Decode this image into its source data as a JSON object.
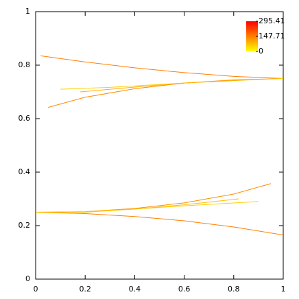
{
  "chart_data": {
    "type": "line",
    "xlim": [
      0,
      1
    ],
    "ylim": [
      0,
      1
    ],
    "xticks": [
      0,
      0.2,
      0.4,
      0.6,
      0.8,
      1
    ],
    "yticks": [
      0,
      0.2,
      0.4,
      0.6,
      0.8,
      1
    ],
    "series": [
      {
        "color": "#ff7f00",
        "x": [
          0.02,
          0.2,
          0.4,
          0.6,
          0.8,
          1.0
        ],
        "values": [
          0.835,
          0.812,
          0.79,
          0.772,
          0.758,
          0.75
        ]
      },
      {
        "color": "#ff8c00",
        "x": [
          0.05,
          0.2,
          0.4,
          0.6,
          0.8,
          1.0
        ],
        "values": [
          0.642,
          0.68,
          0.712,
          0.733,
          0.745,
          0.75
        ]
      },
      {
        "color": "#ffd000",
        "x": [
          0.1,
          0.3,
          0.5,
          0.7,
          0.9,
          1.0
        ],
        "values": [
          0.71,
          0.717,
          0.728,
          0.738,
          0.746,
          0.75
        ]
      },
      {
        "color": "#ffb000",
        "x": [
          0.18,
          0.4,
          0.6,
          0.85
        ],
        "values": [
          0.7,
          0.718,
          0.733,
          0.745
        ]
      },
      {
        "color": "#ff7f00",
        "x": [
          0,
          0.2,
          0.4,
          0.6,
          0.8,
          1.0
        ],
        "values": [
          0.25,
          0.245,
          0.234,
          0.218,
          0.195,
          0.165
        ]
      },
      {
        "color": "#ff8c00",
        "x": [
          0,
          0.2,
          0.4,
          0.6,
          0.8,
          0.95
        ],
        "values": [
          0.25,
          0.252,
          0.264,
          0.285,
          0.318,
          0.357
        ]
      },
      {
        "color": "#ffd000",
        "x": [
          0,
          0.2,
          0.4,
          0.6,
          0.9
        ],
        "values": [
          0.25,
          0.25,
          0.262,
          0.274,
          0.29
        ]
      },
      {
        "color": "#ffc000",
        "x": [
          0,
          0.2,
          0.4,
          0.6,
          0.82
        ],
        "values": [
          0.25,
          0.252,
          0.262,
          0.278,
          0.3
        ]
      }
    ],
    "colorbar": {
      "lim": [
        0,
        295.41
      ],
      "ticks": [
        0,
        147.71,
        295.41
      ],
      "colors": [
        "#ffff00",
        "#ff0000"
      ]
    }
  }
}
